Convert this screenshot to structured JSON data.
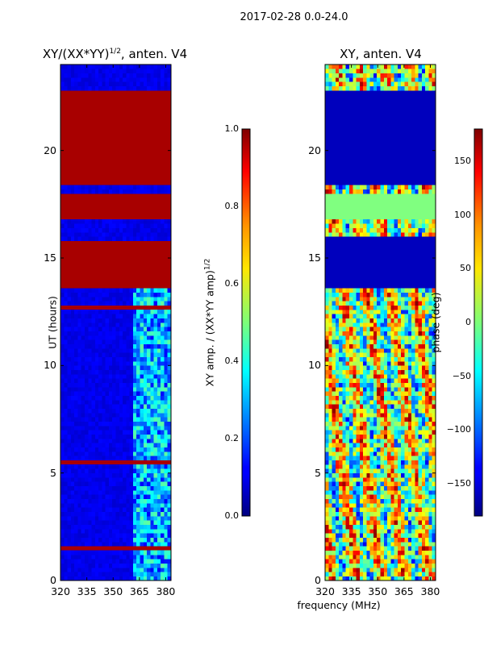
{
  "suptitle": "2017-02-28 0.0-24.0",
  "xlabel": "frequency (MHz)",
  "ylabel": "UT (hours)",
  "charts": {
    "left": {
      "title_main": "XY/(XX*YY)",
      "title_sup": "1/2",
      "title_tail": ", anten. V4",
      "cbar_label_main": "XY amp. / (XX*YY amp)",
      "cbar_label_sup": "1/2"
    },
    "right": {
      "title": "XY, anten. V4",
      "cbar_label": "phase (deg)"
    }
  },
  "chart_data": [
    {
      "type": "heatmap",
      "name": "amplitude",
      "title": "XY/(XX*YY)^1/2, anten. V4",
      "xlabel": "frequency (MHz)",
      "ylabel": "UT (hours)",
      "xlim": [
        320,
        383
      ],
      "ylim": [
        0,
        24
      ],
      "x_ticks": [
        320,
        335,
        350,
        365,
        380
      ],
      "x_tick_labels": [
        "320",
        "335",
        "350",
        "365",
        "380"
      ],
      "y_ticks": [
        0,
        5,
        10,
        15,
        20
      ],
      "y_tick_labels": [
        "0",
        "5",
        "10",
        "15",
        "20"
      ],
      "colormap": "jet",
      "colorbar": {
        "label": "XY amp. / (XX*YY amp)^1/2",
        "range": [
          0,
          1
        ],
        "ticks": [
          0.0,
          0.2,
          0.4,
          0.6,
          0.8,
          1.0
        ],
        "tick_labels": [
          "0.0",
          "0.2",
          "0.4",
          "0.6",
          "0.8",
          "1.0"
        ]
      },
      "saturated_bands_ut_hours": [
        [
          13.7,
          15.8
        ],
        [
          16.9,
          18.0
        ],
        [
          18.5,
          22.9
        ],
        [
          5.5,
          5.7
        ],
        [
          1.4,
          1.55
        ],
        [
          12.7,
          12.9
        ]
      ],
      "active_region_mhz": [
        360,
        382
      ]
    },
    {
      "type": "heatmap",
      "name": "phase",
      "title": "XY, anten. V4",
      "xlabel": "frequency (MHz)",
      "ylabel": "UT (hours)",
      "xlim": [
        320,
        383
      ],
      "ylim": [
        0,
        24
      ],
      "x_ticks": [
        320,
        335,
        350,
        365,
        380
      ],
      "x_tick_labels": [
        "320",
        "335",
        "350",
        "365",
        "380"
      ],
      "y_ticks": [
        0,
        5,
        10,
        15,
        20
      ],
      "y_tick_labels": [
        "0",
        "5",
        "10",
        "15",
        "20"
      ],
      "colormap": "jet",
      "colorbar": {
        "label": "phase (deg)",
        "range": [
          -180,
          180
        ],
        "ticks": [
          -150,
          -100,
          -50,
          0,
          50,
          100,
          150
        ],
        "tick_labels": [
          "−150",
          "−100",
          "−50",
          "0",
          "50",
          "100",
          "150"
        ]
      },
      "flat_bands_ut_hours": [
        [
          13.7,
          16.0
        ],
        [
          18.5,
          22.9
        ],
        [
          16.9,
          18.0
        ]
      ]
    }
  ]
}
